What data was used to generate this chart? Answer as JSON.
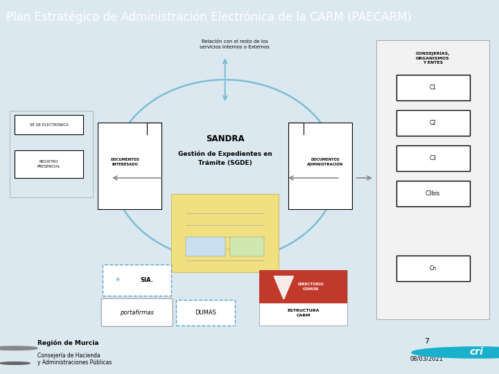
{
  "title": "Plan Estratégico de Administración Electrónica de la CARM (PAECARM)",
  "title_bg": "#6ab0d4",
  "title_color": "white",
  "title_fontsize": 12,
  "bg_color": "#dce8f0",
  "slide_bg": "white",
  "subtitle_text": "Relación con el resto de los\nservicios Internos o Externos",
  "sandra_title": "SANDRA",
  "sandra_subtitle": "Gestión de Expedientes en\nTrámite (SGDE)",
  "left_box1": "SE DE ELECTRÓNICA",
  "left_box2": "REGISTRO\nPRESENCIAL",
  "doc_interesado": "DOCUMENTOS\nINTERESADO",
  "doc_admin": "DOCUMENTOS\nADMINISTRACIÓN",
  "right_panel_title": "CONSEJERÍAS,\nORGANISMOS\nY ENTES",
  "right_boxes": [
    "C1",
    "C2",
    "C3",
    "C3bis",
    "Cn"
  ],
  "sia_label": "SIA.",
  "portafirmas_label": "portafirmas",
  "dumas_label": "DUMAS",
  "estructura_label": "ESTRUCTURA\nCARM",
  "directorio_label": "DIRECTORIO\nCOMÚN",
  "footer_left1": "Región de Murcia",
  "footer_left2": "Consejería de Hacienda\ny Administraciones Públicas",
  "footer_page": "7",
  "footer_date": "08/03/2021",
  "circle_color": "#7bbdd4",
  "arrow_color": "#7bbdd4",
  "box_color": "black",
  "dashed_color": "#5ba3c9",
  "doc_box_color": "#cccccc",
  "red_bg": "#c0392b",
  "cri_color": "#1ab0cc"
}
